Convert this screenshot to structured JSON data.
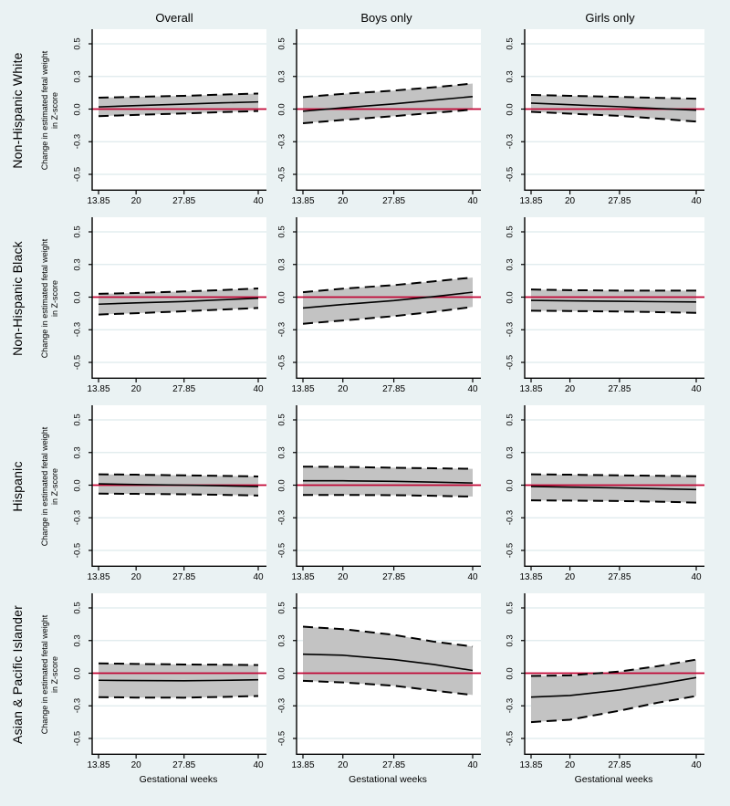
{
  "chart_data": {
    "type": "line",
    "description": "4x3 grid of panels: predicted change in estimated fetal weight (Z-score) across gestational weeks with 95% confidence band, by race/ethnicity (rows) and infant sex (columns)",
    "columns": [
      "Overall",
      "Boys only",
      "Girls only"
    ],
    "rows": [
      "Non-Hispanic White",
      "Non-Hispanic Black",
      "Hispanic",
      "Asian & Pacific Islander"
    ],
    "ylabel_lines": [
      "Change in estimated fetal weight",
      "in Z-score"
    ],
    "xlabel": "Gestational weeks",
    "x_ticks": [
      13.85,
      20,
      27.85,
      40
    ],
    "x_tick_labels": [
      "13.85",
      "20",
      "27.85",
      "40"
    ],
    "y_ticks": [
      0.5,
      0.3,
      0.0,
      -0.3,
      -0.5
    ],
    "y_tick_labels": [
      "0.5",
      "0.3",
      "0.0",
      "-0.3",
      "-0.5"
    ],
    "xlim": [
      13.85,
      40
    ],
    "ylim": [
      -0.5,
      0.5
    ],
    "zero_reference_line": 0.0,
    "grid_y": [
      0.5,
      0.3,
      -0.3,
      -0.5
    ],
    "x": [
      13.85,
      20,
      27.85,
      34,
      40
    ],
    "panels": [
      {
        "row": "Non-Hispanic White",
        "col": "Overall",
        "mid": [
          0.02,
          0.032,
          0.046,
          0.057,
          0.066
        ],
        "lo": [
          -0.065,
          -0.053,
          -0.04,
          -0.028,
          -0.018
        ],
        "hi": [
          0.105,
          0.112,
          0.122,
          0.133,
          0.143
        ]
      },
      {
        "row": "Non-Hispanic White",
        "col": "Boys only",
        "mid": [
          -0.02,
          0.012,
          0.048,
          0.082,
          0.115
        ],
        "lo": [
          -0.13,
          -0.1,
          -0.065,
          -0.035,
          -0.005
        ],
        "hi": [
          0.11,
          0.14,
          0.17,
          0.2,
          0.235
        ]
      },
      {
        "row": "Non-Hispanic White",
        "col": "Girls only",
        "mid": [
          0.055,
          0.04,
          0.022,
          0.005,
          -0.01
        ],
        "lo": [
          -0.025,
          -0.042,
          -0.062,
          -0.088,
          -0.115
        ],
        "hi": [
          0.13,
          0.122,
          0.112,
          0.103,
          0.095
        ]
      },
      {
        "row": "Non-Hispanic Black",
        "col": "Overall",
        "mid": [
          -0.065,
          -0.053,
          -0.04,
          -0.025,
          -0.01
        ],
        "lo": [
          -0.16,
          -0.148,
          -0.13,
          -0.115,
          -0.1
        ],
        "hi": [
          0.03,
          0.038,
          0.052,
          0.065,
          0.08
        ]
      },
      {
        "row": "Non-Hispanic Black",
        "col": "Boys only",
        "mid": [
          -0.1,
          -0.068,
          -0.032,
          0.005,
          0.045
        ],
        "lo": [
          -0.245,
          -0.215,
          -0.175,
          -0.135,
          -0.09
        ],
        "hi": [
          0.045,
          0.078,
          0.11,
          0.145,
          0.18
        ]
      },
      {
        "row": "Non-Hispanic Black",
        "col": "Girls only",
        "mid": [
          -0.03,
          -0.034,
          -0.038,
          -0.042,
          -0.045
        ],
        "lo": [
          -0.125,
          -0.128,
          -0.132,
          -0.138,
          -0.145
        ],
        "hi": [
          0.07,
          0.064,
          0.06,
          0.06,
          0.06
        ]
      },
      {
        "row": "Hispanic",
        "col": "Overall",
        "mid": [
          0.012,
          0.006,
          0.0,
          -0.006,
          -0.012
        ],
        "lo": [
          -0.078,
          -0.08,
          -0.084,
          -0.089,
          -0.095
        ],
        "hi": [
          0.1,
          0.096,
          0.09,
          0.085,
          0.08
        ]
      },
      {
        "row": "Hispanic",
        "col": "Boys only",
        "mid": [
          0.04,
          0.04,
          0.035,
          0.028,
          0.02
        ],
        "lo": [
          -0.09,
          -0.09,
          -0.092,
          -0.098,
          -0.105
        ],
        "hi": [
          0.17,
          0.168,
          0.16,
          0.155,
          0.15
        ]
      },
      {
        "row": "Hispanic",
        "col": "Girls only",
        "mid": [
          -0.012,
          -0.018,
          -0.026,
          -0.033,
          -0.04
        ],
        "lo": [
          -0.14,
          -0.142,
          -0.146,
          -0.152,
          -0.16
        ],
        "hi": [
          0.1,
          0.096,
          0.09,
          0.086,
          0.082
        ]
      },
      {
        "row": "Asian & Pacific Islander",
        "col": "Overall",
        "mid": [
          -0.065,
          -0.068,
          -0.07,
          -0.066,
          -0.06
        ],
        "lo": [
          -0.22,
          -0.224,
          -0.225,
          -0.218,
          -0.21
        ],
        "hi": [
          0.09,
          0.085,
          0.08,
          0.078,
          0.075
        ]
      },
      {
        "row": "Asian & Pacific Islander",
        "col": "Boys only",
        "mid": [
          0.175,
          0.165,
          0.125,
          0.08,
          0.025
        ],
        "lo": [
          -0.07,
          -0.085,
          -0.115,
          -0.16,
          -0.2
        ],
        "hi": [
          0.385,
          0.37,
          0.335,
          0.29,
          0.245
        ]
      },
      {
        "row": "Asian & Pacific Islander",
        "col": "Girls only",
        "mid": [
          -0.22,
          -0.205,
          -0.155,
          -0.1,
          -0.04
        ],
        "lo": [
          -0.4,
          -0.385,
          -0.33,
          -0.27,
          -0.21
        ],
        "hi": [
          -0.025,
          -0.02,
          0.015,
          0.065,
          0.125
        ]
      }
    ],
    "legend_position": "none",
    "colors": {
      "background": "#eaf2f3",
      "plot_background": "#ffffff",
      "confidence_band": "#c3c3c3",
      "estimate_line": "#000000",
      "band_border_dashed": "#000000",
      "zero_line": "#c10534",
      "gridline": "#deeaec",
      "axis": "#000000"
    }
  }
}
